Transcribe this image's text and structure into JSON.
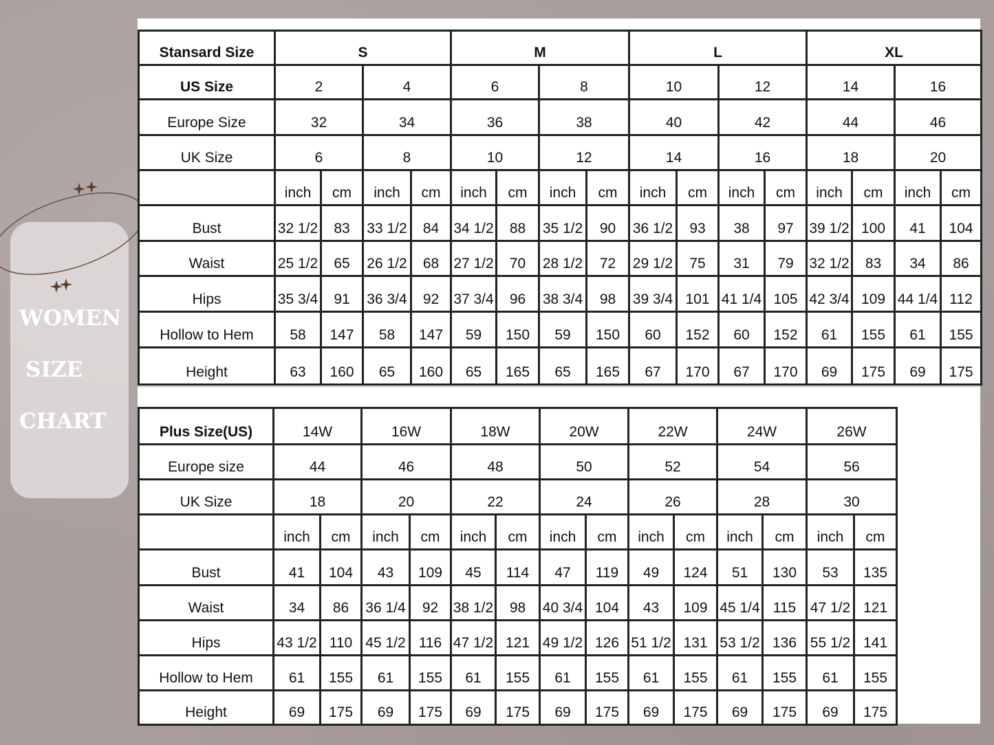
{
  "side_panel": {
    "title_lines": [
      "WOMEN",
      "SIZE",
      "CHART"
    ]
  },
  "standard": {
    "header_label": "Stansard Size",
    "groups": [
      "S",
      "M",
      "L",
      "XL"
    ],
    "us_label": "US Size",
    "us": [
      "2",
      "4",
      "6",
      "8",
      "10",
      "12",
      "14",
      "16"
    ],
    "europe_label": "Europe Size",
    "europe": [
      "32",
      "34",
      "36",
      "38",
      "40",
      "42",
      "44",
      "46"
    ],
    "uk_label": "UK Size",
    "uk": [
      "6",
      "8",
      "10",
      "12",
      "14",
      "16",
      "18",
      "20"
    ],
    "unit_inch": "inch",
    "unit_cm": "cm",
    "measurements": [
      {
        "label": "Bust",
        "values": [
          "32 1/2",
          "83",
          "33 1/2",
          "84",
          "34 1/2",
          "88",
          "35 1/2",
          "90",
          "36 1/2",
          "93",
          "38",
          "97",
          "39 1/2",
          "100",
          "41",
          "104"
        ]
      },
      {
        "label": "Waist",
        "values": [
          "25 1/2",
          "65",
          "26 1/2",
          "68",
          "27 1/2",
          "70",
          "28 1/2",
          "72",
          "29 1/2",
          "75",
          "31",
          "79",
          "32 1/2",
          "83",
          "34",
          "86"
        ]
      },
      {
        "label": "Hips",
        "values": [
          "35 3/4",
          "91",
          "36 3/4",
          "92",
          "37 3/4",
          "96",
          "38 3/4",
          "98",
          "39 3/4",
          "101",
          "41 1/4",
          "105",
          "42 3/4",
          "109",
          "44 1/4",
          "112"
        ]
      },
      {
        "label": "Hollow to Hem",
        "values": [
          "58",
          "147",
          "58",
          "147",
          "59",
          "150",
          "59",
          "150",
          "60",
          "152",
          "60",
          "152",
          "61",
          "155",
          "61",
          "155"
        ]
      },
      {
        "label": "Height",
        "values": [
          "63",
          "160",
          "65",
          "160",
          "65",
          "165",
          "65",
          "165",
          "67",
          "170",
          "67",
          "170",
          "69",
          "175",
          "69",
          "175"
        ]
      }
    ]
  },
  "plus": {
    "header_label": "Plus Size(US)",
    "us": [
      "14W",
      "16W",
      "18W",
      "20W",
      "22W",
      "24W",
      "26W"
    ],
    "europe_label": "Europe size",
    "europe": [
      "44",
      "46",
      "48",
      "50",
      "52",
      "54",
      "56"
    ],
    "uk_label": "UK Size",
    "uk": [
      "18",
      "20",
      "22",
      "24",
      "26",
      "28",
      "30"
    ],
    "unit_inch": "inch",
    "unit_cm": "cm",
    "measurements": [
      {
        "label": "Bust",
        "values": [
          "41",
          "104",
          "43",
          "109",
          "45",
          "114",
          "47",
          "119",
          "49",
          "124",
          "51",
          "130",
          "53",
          "135"
        ]
      },
      {
        "label": "Waist",
        "values": [
          "34",
          "86",
          "36 1/4",
          "92",
          "38 1/2",
          "98",
          "40 3/4",
          "104",
          "43",
          "109",
          "45 1/4",
          "115",
          "47 1/2",
          "121"
        ]
      },
      {
        "label": "Hips",
        "values": [
          "43 1/2",
          "110",
          "45 1/2",
          "116",
          "47 1/2",
          "121",
          "49 1/2",
          "126",
          "51 1/2",
          "131",
          "53 1/2",
          "136",
          "55 1/2",
          "141"
        ]
      },
      {
        "label": "Hollow to Hem",
        "values": [
          "61",
          "155",
          "61",
          "155",
          "61",
          "155",
          "61",
          "155",
          "61",
          "155",
          "61",
          "155",
          "61",
          "155"
        ]
      },
      {
        "label": "Height",
        "values": [
          "69",
          "175",
          "69",
          "175",
          "69",
          "175",
          "69",
          "175",
          "69",
          "175",
          "69",
          "175",
          "69",
          "175"
        ]
      }
    ]
  }
}
